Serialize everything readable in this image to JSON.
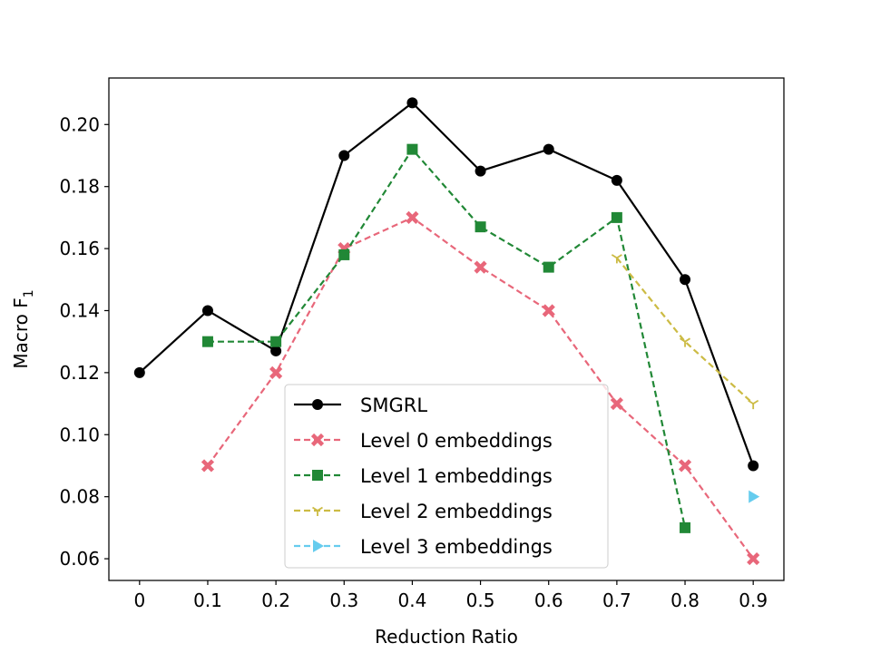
{
  "chart_data": {
    "type": "line",
    "title": "",
    "xlabel": "Reduction Ratio",
    "ylabel": "Macro F",
    "ylabel_subscript": "1",
    "xlim": [
      -0.045,
      0.945
    ],
    "ylim": [
      0.053,
      0.215
    ],
    "xticks": [
      0,
      0.1,
      0.2,
      0.3,
      0.4,
      0.5,
      0.6,
      0.7,
      0.8,
      0.9
    ],
    "xtick_labels": [
      "0",
      "0.1",
      "0.2",
      "0.3",
      "0.4",
      "0.5",
      "0.6",
      "0.7",
      "0.8",
      "0.9"
    ],
    "yticks": [
      0.06,
      0.08,
      0.1,
      0.12,
      0.14,
      0.16,
      0.18,
      0.2
    ],
    "ytick_labels": [
      "0.06",
      "0.08",
      "0.10",
      "0.12",
      "0.14",
      "0.16",
      "0.18",
      "0.20"
    ],
    "legend_position": "lower-center",
    "series": [
      {
        "name": "SMGRL",
        "color": "#000000",
        "dash": "solid",
        "marker": "circle",
        "x": [
          0,
          0.1,
          0.2,
          0.3,
          0.4,
          0.5,
          0.6,
          0.7,
          0.8,
          0.9
        ],
        "values": [
          0.12,
          0.14,
          0.127,
          0.19,
          0.207,
          0.185,
          0.192,
          0.182,
          0.15,
          0.09
        ]
      },
      {
        "name": "Level 0 embeddings",
        "color": "#e8677a",
        "dash": "dashed",
        "marker": "x",
        "x": [
          0.1,
          0.2,
          0.3,
          0.4,
          0.5,
          0.6,
          0.7,
          0.8,
          0.9
        ],
        "values": [
          0.09,
          0.12,
          0.16,
          0.17,
          0.154,
          0.14,
          0.11,
          0.09,
          0.06
        ]
      },
      {
        "name": "Level 1 embeddings",
        "color": "#218836",
        "dash": "dashed",
        "marker": "square",
        "x": [
          0.1,
          0.2,
          0.3,
          0.4,
          0.5,
          0.6,
          0.7,
          0.8
        ],
        "values": [
          0.13,
          0.13,
          0.158,
          0.192,
          0.167,
          0.154,
          0.17,
          0.07
        ]
      },
      {
        "name": "Level 2 embeddings",
        "color": "#ccbb44",
        "dash": "dashed",
        "marker": "tri_down",
        "x": [
          0.7,
          0.8,
          0.9
        ],
        "values": [
          0.157,
          0.13,
          0.11
        ]
      },
      {
        "name": "Level 3 embeddings",
        "color": "#66ccee",
        "dash": "dashed",
        "marker": "triangle_right",
        "x": [
          0.9
        ],
        "values": [
          0.08
        ]
      }
    ]
  }
}
